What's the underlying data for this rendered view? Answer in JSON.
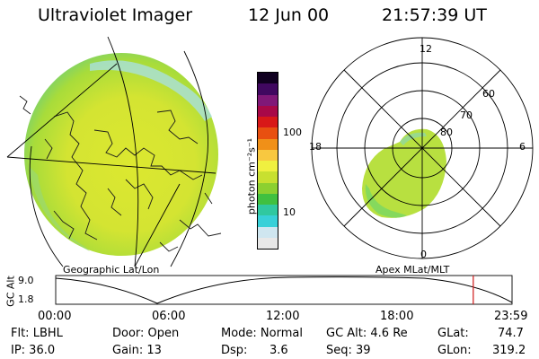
{
  "header": {
    "title": "Ultraviolet Imager",
    "date": "12 Jun 00",
    "time": "21:57:39 UT"
  },
  "colorbar": {
    "unit_label": "photon cm⁻²s⁻¹",
    "tick_100": "100",
    "tick_10": "10",
    "colors": [
      "#e8e8e8",
      "#cfe6f0",
      "#38d0d8",
      "#30c8a0",
      "#40c040",
      "#8cd030",
      "#c8e030",
      "#f0f040",
      "#f8c840",
      "#f09018",
      "#e85010",
      "#d81818",
      "#a80848",
      "#801878",
      "#400860",
      "#100020"
    ]
  },
  "geo_panel": {
    "label": "Geographic Lat/Lon"
  },
  "polar_panel": {
    "label": "Apex MLat/MLT",
    "mlt_top": "12",
    "mlt_bottom": "0",
    "mlt_left": "18",
    "mlt_right": "6",
    "lat_60": "60",
    "lat_70": "70",
    "lat_80": "80"
  },
  "timeline": {
    "axis_label": "GC Alt",
    "ytick_top": "9.0",
    "ytick_bottom": "1.8",
    "xticks": [
      "00:00",
      "06:00",
      "12:00",
      "18:00",
      "23:59"
    ],
    "current_time_fraction": 0.915,
    "marker_color": "#d01818"
  },
  "status": {
    "flt": "Flt: LBHL",
    "ip": "IP: 36.0",
    "door": "Door: Open",
    "gain": "Gain: 13",
    "mode": "Mode: Normal",
    "dsp_label": "Dsp:",
    "dsp_value": "3.6",
    "gcalt": "GC Alt: 4.6 Re",
    "seq": "Seq: 39",
    "glat_label": "GLat:",
    "glat_value": "74.7",
    "glon_label": "GLon:",
    "glon_value": "319.2"
  }
}
